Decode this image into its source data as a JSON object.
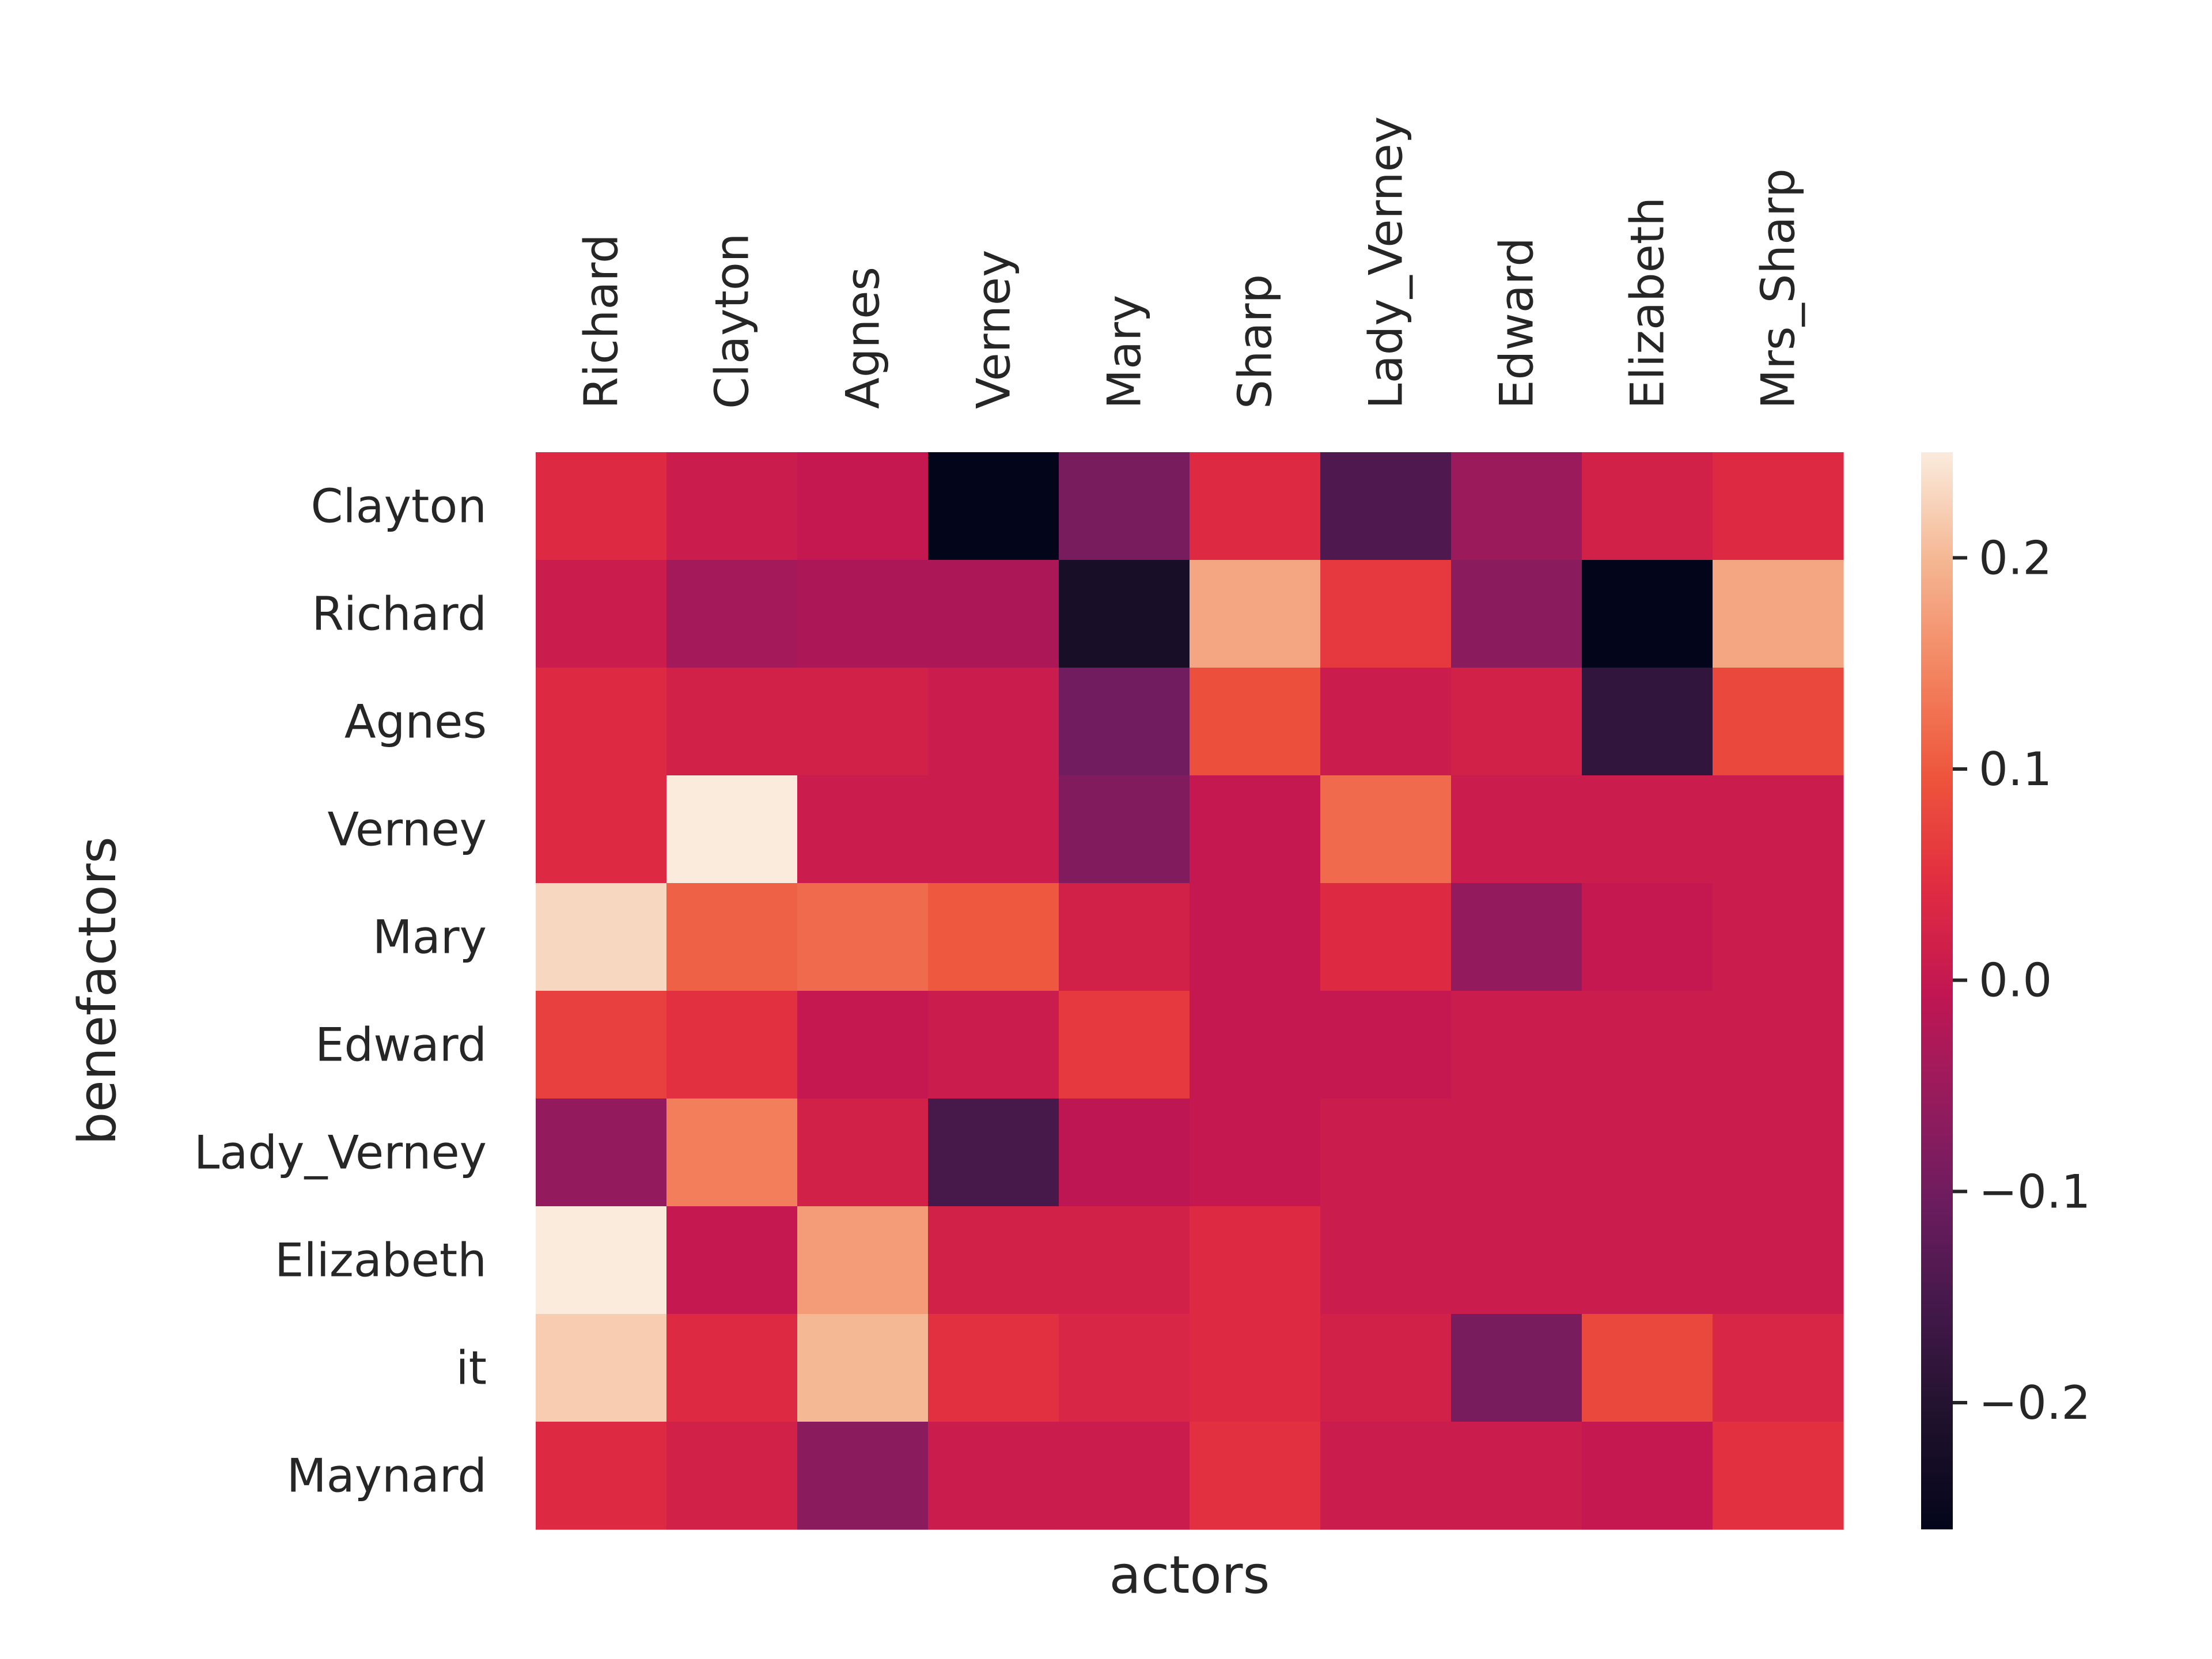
{
  "chart_data": {
    "type": "heatmap",
    "xlabel": "actors",
    "ylabel": "benefactors",
    "x_categories": [
      "Richard",
      "Clayton",
      "Agnes",
      "Verney",
      "Mary",
      "Sharp",
      "Lady_Verney",
      "Edward",
      "Elizabeth",
      "Mrs_Sharp"
    ],
    "y_categories": [
      "Clayton",
      "Richard",
      "Agnes",
      "Verney",
      "Mary",
      "Edward",
      "Lady_Verney",
      "Elizabeth",
      "it",
      "Maynard"
    ],
    "values": [
      [
        0.04,
        0.01,
        0.0,
        -0.26,
        -0.09,
        0.04,
        -0.14,
        -0.05,
        0.02,
        0.04
      ],
      [
        0.01,
        -0.04,
        -0.03,
        -0.03,
        -0.22,
        0.18,
        0.06,
        -0.07,
        -0.26,
        0.18
      ],
      [
        0.04,
        0.02,
        0.02,
        0.01,
        -0.1,
        0.09,
        0.01,
        0.02,
        -0.18,
        0.08
      ],
      [
        0.04,
        0.25,
        0.01,
        0.01,
        -0.08,
        0.0,
        0.12,
        0.01,
        0.01,
        0.01
      ],
      [
        0.23,
        0.11,
        0.12,
        0.1,
        0.02,
        0.0,
        0.04,
        -0.06,
        0.0,
        0.01
      ],
      [
        0.07,
        0.05,
        0.0,
        0.01,
        0.06,
        0.0,
        0.0,
        0.01,
        0.01,
        0.01
      ],
      [
        -0.06,
        0.14,
        0.02,
        -0.15,
        -0.01,
        0.0,
        0.01,
        0.01,
        0.01,
        0.01
      ],
      [
        0.25,
        0.0,
        0.17,
        0.02,
        0.02,
        0.04,
        0.01,
        0.01,
        0.01,
        0.01
      ],
      [
        0.22,
        0.04,
        0.2,
        0.05,
        0.03,
        0.04,
        0.02,
        -0.09,
        0.08,
        0.03
      ],
      [
        0.04,
        0.02,
        -0.07,
        0.01,
        0.01,
        0.05,
        0.01,
        0.01,
        0.0,
        0.05
      ]
    ],
    "colorbar": {
      "colormap": "rocket",
      "vmin": -0.26,
      "vmax": 0.25,
      "ticks": [
        0.2,
        0.1,
        0.0,
        -0.1,
        -0.2
      ],
      "tick_labels": [
        "0.2",
        "0.1",
        "0.0",
        "−0.1",
        "−0.2"
      ]
    },
    "grid": false,
    "legend": "colorbar-right"
  }
}
